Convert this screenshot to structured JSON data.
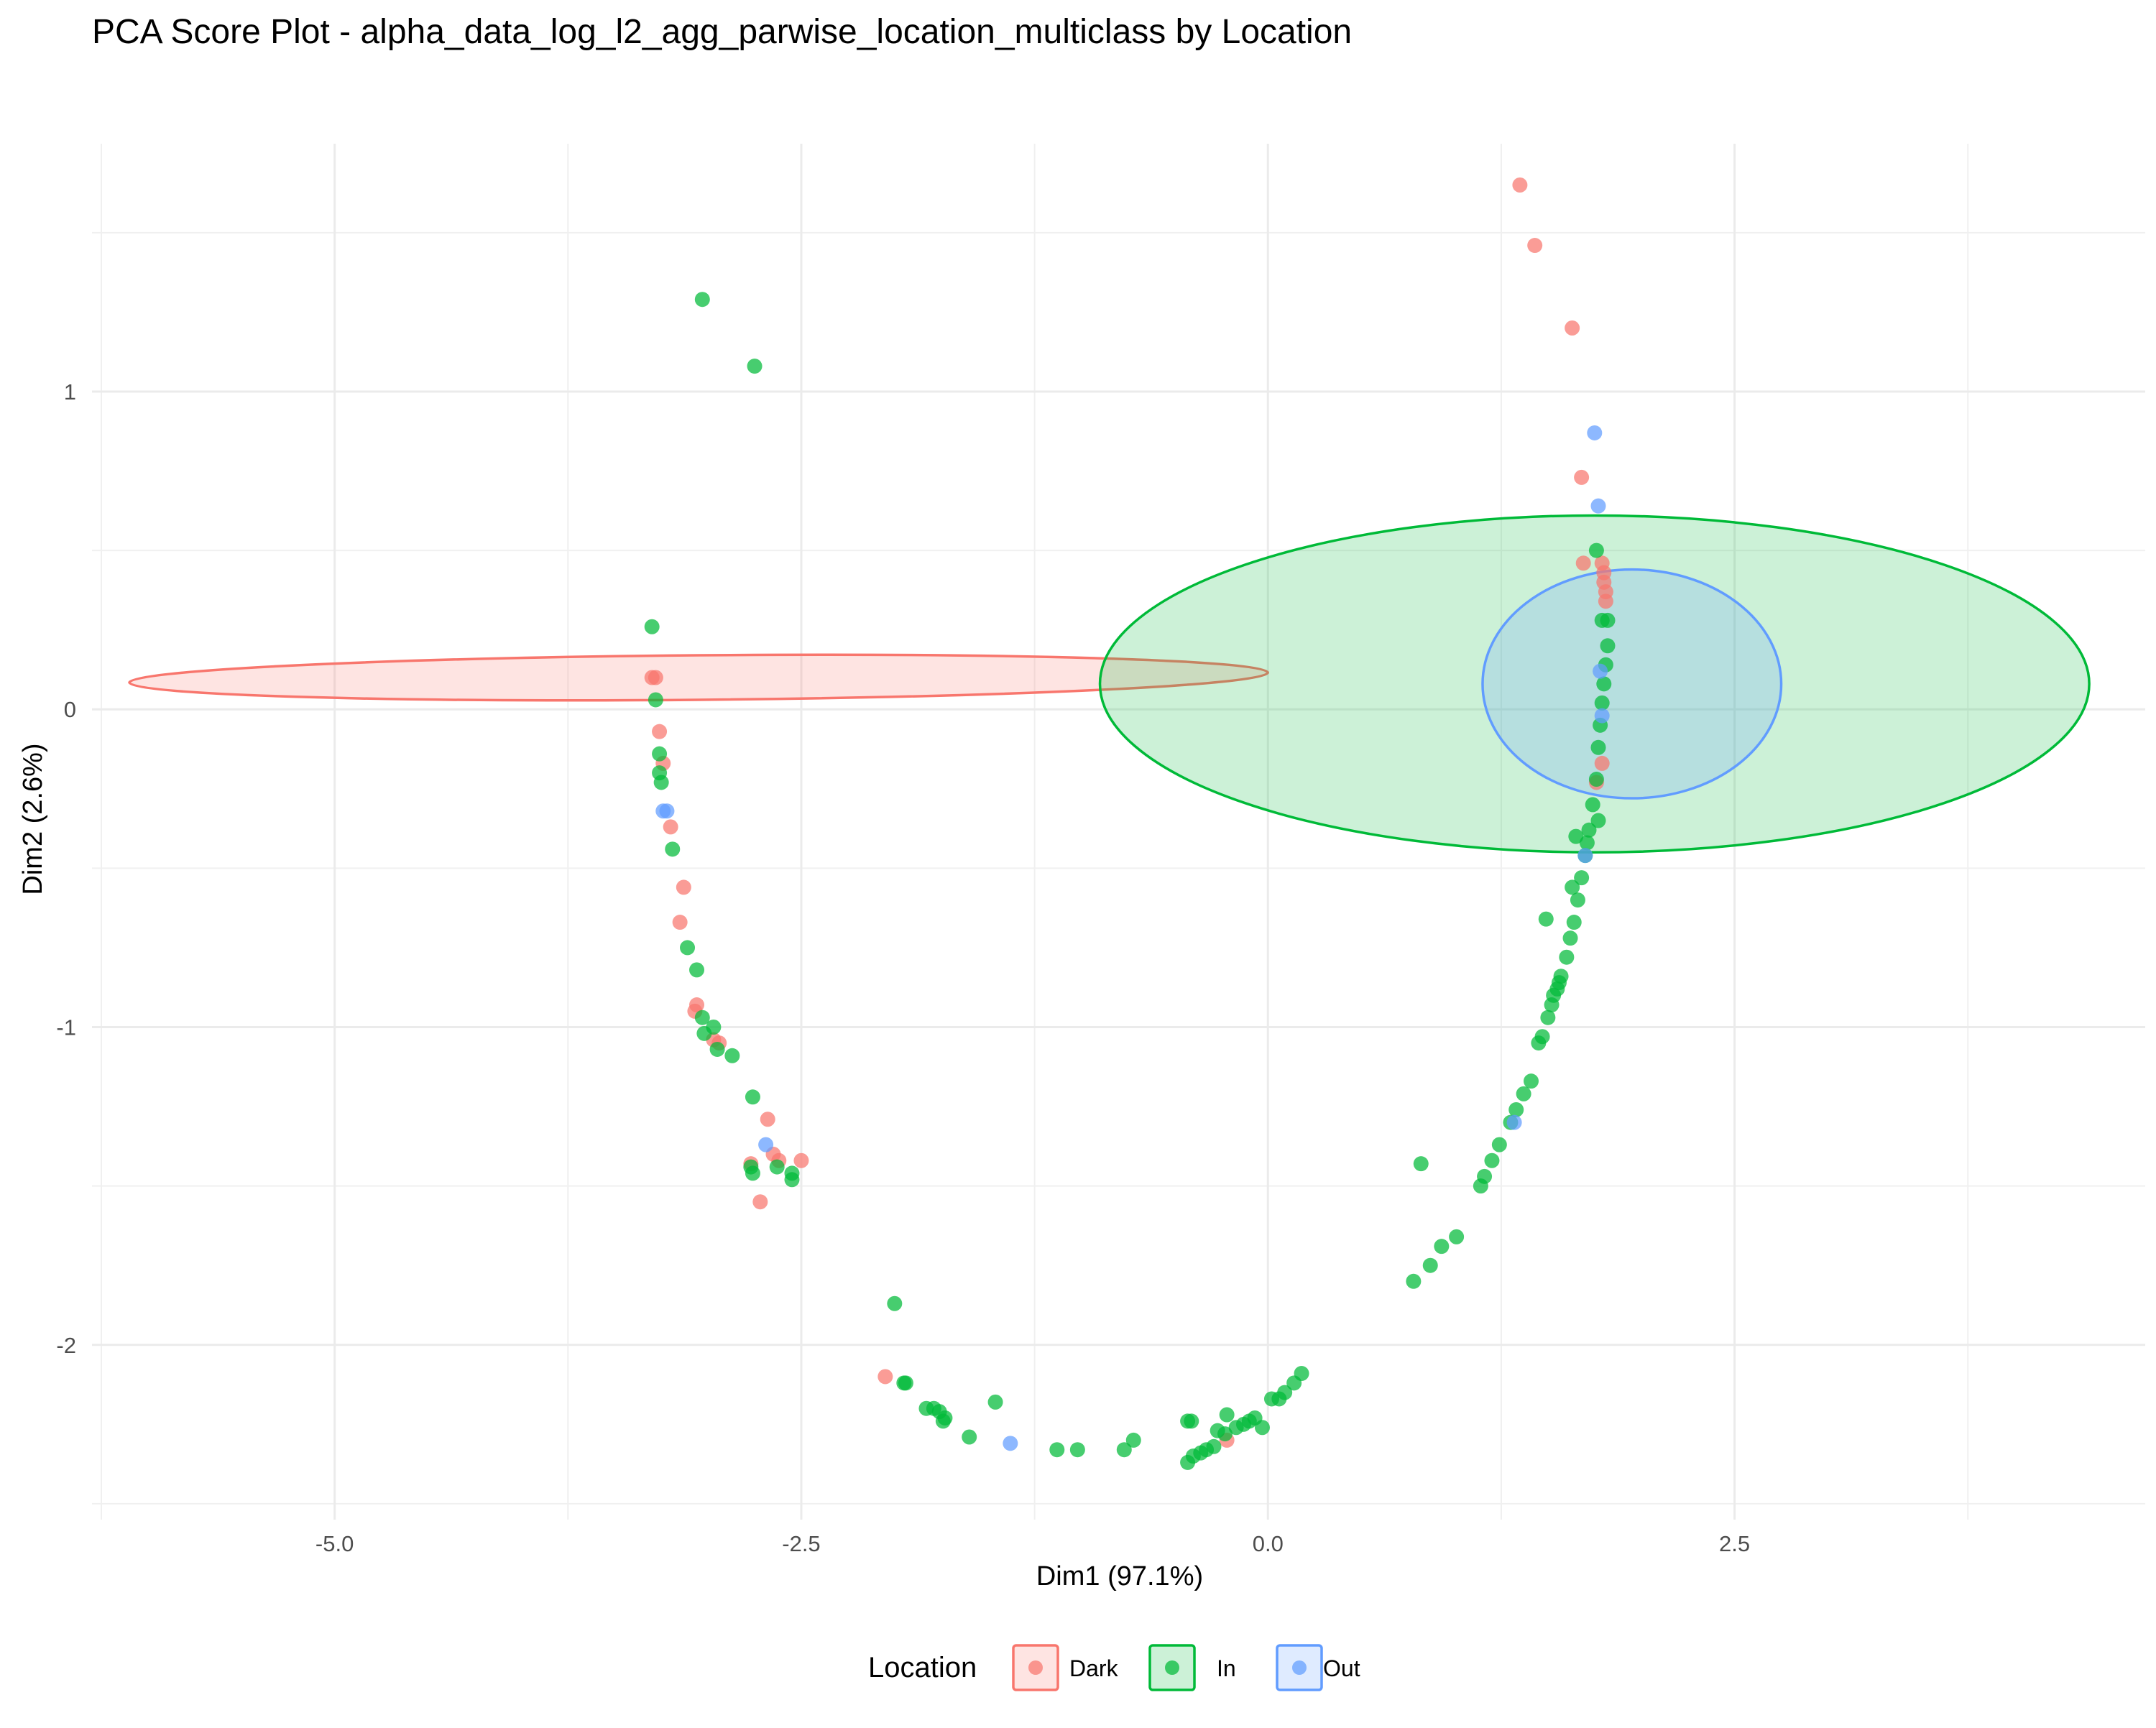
{
  "chart_data": {
    "type": "scatter",
    "title": "PCA Score Plot - alpha_data_log_l2_agg_parwise_location_multiclass by Location",
    "xlabel": "Dim1 (97.1%)",
    "ylabel": "Dim2 (2.6%)",
    "xlim": [
      -6.3,
      4.7
    ],
    "ylim": [
      -2.55,
      1.78
    ],
    "x_ticks": [
      -5.0,
      -2.5,
      0.0,
      2.5
    ],
    "x_tick_labels": [
      "-5.0",
      "-2.5",
      "0.0",
      "2.5"
    ],
    "y_ticks": [
      -2,
      -1,
      0,
      1
    ],
    "y_tick_labels": [
      "-2",
      "-1",
      "0",
      "1"
    ],
    "x_minor": [
      -6.25,
      -3.75,
      -1.25,
      1.25,
      3.75
    ],
    "y_minor": [
      -2.5,
      -1.5,
      -0.5,
      0.5,
      1.5
    ],
    "grid": true,
    "legend": {
      "title": "Location",
      "position": "bottom",
      "entries": [
        "Dark",
        "In",
        "Out"
      ]
    },
    "colors": {
      "Dark": "#F8766D",
      "In": "#00BA38",
      "Out": "#619CFF"
    },
    "ellipses": [
      {
        "group": "Dark",
        "cx": -3.05,
        "cy": 0.1,
        "a": 3.05,
        "b": 0.07,
        "angle_deg": 0.5
      },
      {
        "group": "In",
        "cx": 1.75,
        "cy": 0.08,
        "a": 2.65,
        "b": 0.53,
        "angle_deg": 0
      },
      {
        "group": "Out",
        "cx": 1.95,
        "cy": 0.08,
        "a": 0.8,
        "b": 0.36,
        "angle_deg": 0
      }
    ],
    "series": [
      {
        "name": "Dark",
        "points": [
          [
            1.35,
            1.65
          ],
          [
            1.43,
            1.46
          ],
          [
            1.63,
            1.2
          ],
          [
            1.68,
            0.73
          ],
          [
            1.69,
            0.46
          ],
          [
            1.79,
            0.46
          ],
          [
            1.8,
            0.43
          ],
          [
            1.8,
            0.4
          ],
          [
            1.81,
            0.37
          ],
          [
            1.81,
            0.34
          ],
          [
            1.79,
            -0.17
          ],
          [
            1.76,
            -0.23
          ],
          [
            -3.3,
            0.1
          ],
          [
            -3.28,
            0.1
          ],
          [
            -3.26,
            -0.07
          ],
          [
            -3.24,
            -0.17
          ],
          [
            -3.2,
            -0.37
          ],
          [
            -3.13,
            -0.56
          ],
          [
            -3.15,
            -0.67
          ],
          [
            -3.06,
            -0.93
          ],
          [
            -3.07,
            -0.95
          ],
          [
            -2.97,
            -1.04
          ],
          [
            -2.94,
            -1.05
          ],
          [
            -2.68,
            -1.29
          ],
          [
            -2.65,
            -1.4
          ],
          [
            -2.77,
            -1.43
          ],
          [
            -2.62,
            -1.42
          ],
          [
            -2.5,
            -1.42
          ],
          [
            -2.72,
            -1.55
          ],
          [
            -2.05,
            -2.1
          ],
          [
            -0.22,
            -2.3
          ]
        ]
      },
      {
        "name": "In",
        "points": [
          [
            -3.03,
            1.29
          ],
          [
            -2.75,
            1.08
          ],
          [
            -3.3,
            0.26
          ],
          [
            -3.28,
            0.03
          ],
          [
            -3.26,
            -0.14
          ],
          [
            -3.26,
            -0.2
          ],
          [
            -3.25,
            -0.23
          ],
          [
            -3.19,
            -0.44
          ],
          [
            -3.11,
            -0.75
          ],
          [
            -3.06,
            -0.82
          ],
          [
            -3.03,
            -0.97
          ],
          [
            -3.02,
            -1.02
          ],
          [
            -2.97,
            -1.0
          ],
          [
            -2.95,
            -1.07
          ],
          [
            -2.87,
            -1.09
          ],
          [
            -2.76,
            -1.22
          ],
          [
            -2.77,
            -1.44
          ],
          [
            -2.76,
            -1.46
          ],
          [
            -2.63,
            -1.44
          ],
          [
            -2.55,
            -1.46
          ],
          [
            -2.55,
            -1.48
          ],
          [
            -2.0,
            -1.87
          ],
          [
            -1.95,
            -2.12
          ],
          [
            -1.94,
            -2.12
          ],
          [
            -1.83,
            -2.2
          ],
          [
            -1.79,
            -2.2
          ],
          [
            -1.76,
            -2.21
          ],
          [
            -1.74,
            -2.24
          ],
          [
            -1.73,
            -2.23
          ],
          [
            -1.6,
            -2.29
          ],
          [
            -1.46,
            -2.18
          ],
          [
            -1.13,
            -2.33
          ],
          [
            -1.02,
            -2.33
          ],
          [
            -0.77,
            -2.33
          ],
          [
            -0.72,
            -2.3
          ],
          [
            -0.43,
            -2.37
          ],
          [
            -0.4,
            -2.35
          ],
          [
            -0.36,
            -2.34
          ],
          [
            -0.33,
            -2.33
          ],
          [
            -0.29,
            -2.32
          ],
          [
            -0.27,
            -2.27
          ],
          [
            -0.23,
            -2.28
          ],
          [
            -0.22,
            -2.22
          ],
          [
            -0.17,
            -2.26
          ],
          [
            -0.13,
            -2.25
          ],
          [
            -0.1,
            -2.24
          ],
          [
            -0.07,
            -2.23
          ],
          [
            -0.03,
            -2.26
          ],
          [
            0.02,
            -2.17
          ],
          [
            0.06,
            -2.17
          ],
          [
            0.09,
            -2.15
          ],
          [
            0.14,
            -2.12
          ],
          [
            0.18,
            -2.09
          ],
          [
            -0.41,
            -2.24
          ],
          [
            -0.43,
            -2.24
          ],
          [
            0.78,
            -1.8
          ],
          [
            0.82,
            -1.43
          ],
          [
            0.87,
            -1.75
          ],
          [
            0.93,
            -1.69
          ],
          [
            1.01,
            -1.66
          ],
          [
            1.14,
            -1.5
          ],
          [
            1.16,
            -1.47
          ],
          [
            1.2,
            -1.42
          ],
          [
            1.24,
            -1.37
          ],
          [
            1.3,
            -1.3
          ],
          [
            1.33,
            -1.26
          ],
          [
            1.37,
            -1.21
          ],
          [
            1.41,
            -1.17
          ],
          [
            1.45,
            -1.05
          ],
          [
            1.47,
            -1.03
          ],
          [
            1.5,
            -0.97
          ],
          [
            1.52,
            -0.93
          ],
          [
            1.55,
            -0.88
          ],
          [
            1.57,
            -0.84
          ],
          [
            1.6,
            -0.78
          ],
          [
            1.62,
            -0.72
          ],
          [
            1.64,
            -0.67
          ],
          [
            1.49,
            -0.66
          ],
          [
            1.66,
            -0.6
          ],
          [
            1.68,
            -0.53
          ],
          [
            1.63,
            -0.56
          ],
          [
            1.7,
            -0.46
          ],
          [
            1.65,
            -0.4
          ],
          [
            1.72,
            -0.38
          ],
          [
            1.74,
            -0.3
          ],
          [
            1.76,
            -0.22
          ],
          [
            1.77,
            -0.12
          ],
          [
            1.78,
            -0.05
          ],
          [
            1.79,
            0.02
          ],
          [
            1.8,
            0.08
          ],
          [
            1.81,
            0.14
          ],
          [
            1.82,
            0.2
          ],
          [
            1.82,
            0.28
          ],
          [
            1.79,
            0.28
          ],
          [
            1.76,
            0.5
          ],
          [
            1.77,
            -0.35
          ],
          [
            1.71,
            -0.42
          ],
          [
            1.56,
            -0.86
          ],
          [
            1.53,
            -0.9
          ]
        ]
      },
      {
        "name": "Out",
        "points": [
          [
            1.75,
            0.87
          ],
          [
            1.77,
            0.64
          ],
          [
            1.78,
            0.12
          ],
          [
            1.79,
            -0.02
          ],
          [
            1.7,
            -0.46
          ],
          [
            1.32,
            -1.3
          ],
          [
            -3.24,
            -0.32
          ],
          [
            -3.22,
            -0.32
          ],
          [
            -2.69,
            -1.37
          ],
          [
            -1.38,
            -2.31
          ]
        ]
      }
    ]
  }
}
